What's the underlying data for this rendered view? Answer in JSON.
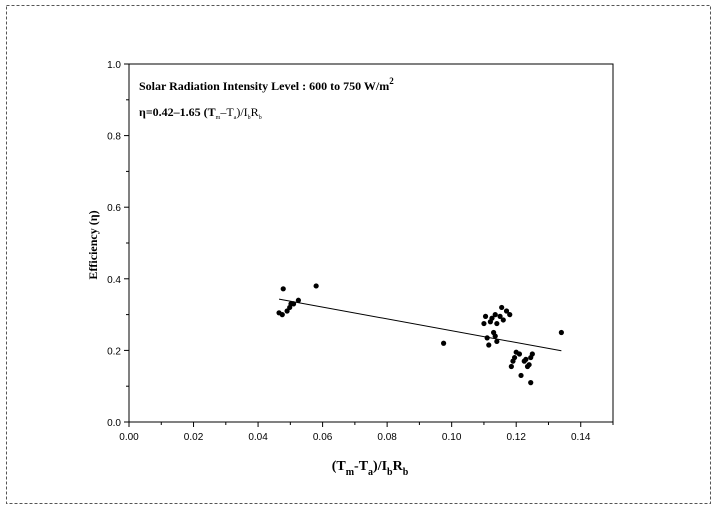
{
  "chart_data": {
    "type": "scatter",
    "title": "",
    "annotations": {
      "line1": {
        "text": "Solar Radiation Intensity Level  : 600 to 750 W/m",
        "sup": "2"
      },
      "equation": {
        "lead": "η=0.42–1.65 (T",
        "sub_m": "m",
        "mid": "–T",
        "sub_a": "a",
        "slash_i": ")/I",
        "sub_b1": "b",
        "r": "R",
        "sub_b2": "b"
      }
    },
    "xlabel": {
      "open": "(T",
      "sub_m": "m",
      "dash": "-T",
      "sub_a": "a",
      "close": ")/I",
      "sub_b1": "b",
      "r": "R",
      "sub_b2": "b"
    },
    "ylabel": "Efficiency (η)",
    "xlim": [
      0.0,
      0.15
    ],
    "ylim": [
      0.0,
      1.0
    ],
    "xticks": [
      "0.00",
      "0.02",
      "0.04",
      "0.06",
      "0.08",
      "0.10",
      "0.12",
      "0.14"
    ],
    "yticks": [
      "0.0",
      "0.2",
      "0.4",
      "0.6",
      "0.8",
      "1.0"
    ],
    "grid": false,
    "fit_line": {
      "intercept": 0.42,
      "slope": -1.65,
      "x_range": [
        0.0465,
        0.134
      ]
    },
    "series": [
      {
        "points": [
          [
            0.0465,
            0.305
          ],
          [
            0.0475,
            0.3
          ],
          [
            0.0478,
            0.372
          ],
          [
            0.049,
            0.31
          ],
          [
            0.0498,
            0.32
          ],
          [
            0.0502,
            0.33
          ],
          [
            0.051,
            0.33
          ],
          [
            0.0525,
            0.34
          ],
          [
            0.058,
            0.38
          ],
          [
            0.0975,
            0.22
          ],
          [
            0.11,
            0.275
          ],
          [
            0.1105,
            0.295
          ],
          [
            0.111,
            0.235
          ],
          [
            0.1115,
            0.215
          ],
          [
            0.112,
            0.28
          ],
          [
            0.1125,
            0.29
          ],
          [
            0.113,
            0.25
          ],
          [
            0.1135,
            0.24
          ],
          [
            0.1135,
            0.3
          ],
          [
            0.114,
            0.225
          ],
          [
            0.114,
            0.275
          ],
          [
            0.115,
            0.295
          ],
          [
            0.1155,
            0.32
          ],
          [
            0.116,
            0.285
          ],
          [
            0.117,
            0.31
          ],
          [
            0.118,
            0.3
          ],
          [
            0.1185,
            0.155
          ],
          [
            0.119,
            0.17
          ],
          [
            0.1195,
            0.18
          ],
          [
            0.12,
            0.195
          ],
          [
            0.121,
            0.19
          ],
          [
            0.1215,
            0.13
          ],
          [
            0.1225,
            0.17
          ],
          [
            0.123,
            0.175
          ],
          [
            0.1235,
            0.155
          ],
          [
            0.124,
            0.16
          ],
          [
            0.1245,
            0.18
          ],
          [
            0.1245,
            0.11
          ],
          [
            0.125,
            0.19
          ],
          [
            0.134,
            0.25
          ]
        ]
      }
    ]
  }
}
